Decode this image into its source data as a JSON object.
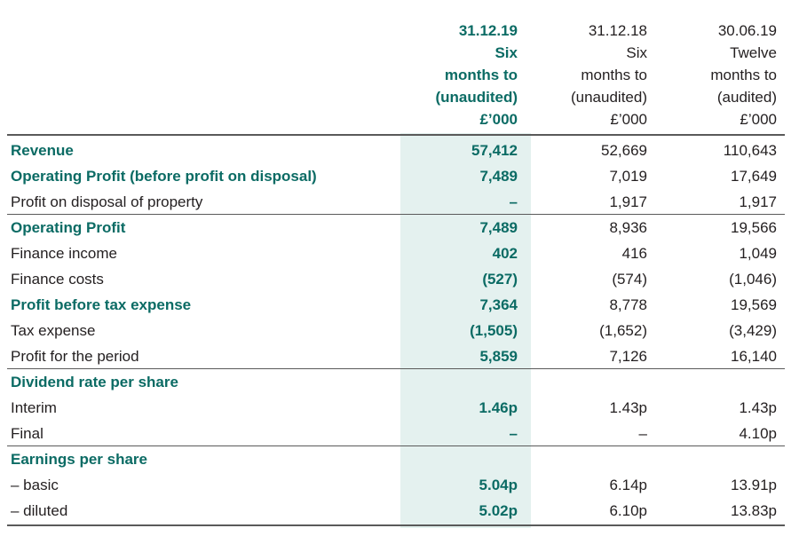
{
  "columns": [
    {
      "lines": [
        "31.12.19",
        "Six",
        "months to",
        "(unaudited)",
        "£’000"
      ]
    },
    {
      "lines": [
        "31.12.18",
        "Six",
        "months to",
        "(unaudited)",
        "£’000"
      ]
    },
    {
      "lines": [
        "30.06.19",
        "Twelve",
        "months to",
        "(audited)",
        "£’000"
      ]
    }
  ],
  "rows": [
    {
      "label": "Revenue",
      "values": [
        "57,412",
        "52,669",
        "110,643"
      ],
      "style": "highlight"
    },
    {
      "label": "Operating Profit (before profit on disposal)",
      "values": [
        "7,489",
        "7,019",
        "17,649"
      ],
      "style": "highlight"
    },
    {
      "label": "Profit on disposal of property",
      "values": [
        "–",
        "1,917",
        "1,917"
      ],
      "style": "normal"
    },
    {
      "label": "Operating Profit",
      "values": [
        "7,489",
        "8,936",
        "19,566"
      ],
      "style": "highlight"
    },
    {
      "label": "Finance income",
      "values": [
        "402",
        "416",
        "1,049"
      ],
      "style": "normal"
    },
    {
      "label": "Finance costs",
      "values": [
        "(527)",
        "(574)",
        "(1,046)"
      ],
      "style": "normal"
    },
    {
      "label": "Profit before tax expense",
      "values": [
        "7,364",
        "8,778",
        "19,569"
      ],
      "style": "highlight"
    },
    {
      "label": "Tax expense",
      "values": [
        "(1,505)",
        "(1,652)",
        "(3,429)"
      ],
      "style": "normal"
    },
    {
      "label": "Profit for the period",
      "values": [
        "5,859",
        "7,126",
        "16,140"
      ],
      "style": "normal"
    },
    {
      "label": "Dividend rate per share",
      "values": [
        "",
        "",
        ""
      ],
      "style": "section"
    },
    {
      "label": "Interim",
      "values": [
        "1.46p",
        "1.43p",
        "1.43p"
      ],
      "style": "normal"
    },
    {
      "label": "Final",
      "values": [
        "–",
        "–",
        "4.10p"
      ],
      "style": "normal"
    },
    {
      "label": "Earnings per share",
      "values": [
        "",
        "",
        ""
      ],
      "style": "section"
    },
    {
      "label": "– basic",
      "values": [
        "5.04p",
        "6.14p",
        "13.91p"
      ],
      "style": "normal"
    },
    {
      "label": "– diluted",
      "values": [
        "5.02p",
        "6.10p",
        "13.83p"
      ],
      "style": "normal"
    }
  ],
  "colors": {
    "accent": "#0b6b64",
    "current_column_shading": "#e4f1ef",
    "text": "#231f20",
    "rule": "#5a5a5a"
  }
}
